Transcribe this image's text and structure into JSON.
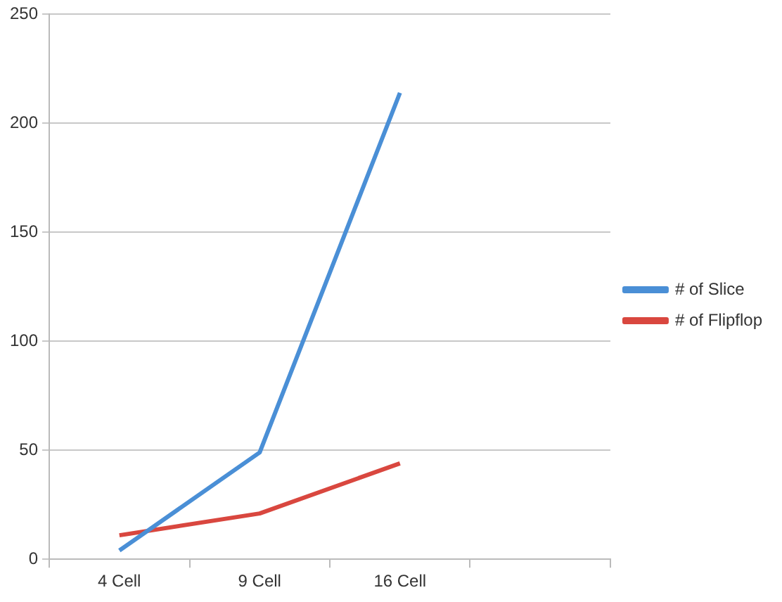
{
  "chart_data": {
    "type": "line",
    "categories": [
      "4 Cell",
      "9 Cell",
      "16 Cell",
      null
    ],
    "series": [
      {
        "name": "# of Slice",
        "color": "#4a8fd6",
        "values": [
          4,
          49,
          214,
          null
        ]
      },
      {
        "name": "# of Flipflop",
        "color": "#d9473f",
        "values": [
          11,
          21,
          44,
          null
        ]
      }
    ],
    "ylim": [
      0,
      250
    ],
    "yticks": [
      0,
      50,
      100,
      150,
      200,
      250
    ],
    "grid": "y",
    "legend": "right",
    "marker": "none",
    "line_style": "solid"
  }
}
